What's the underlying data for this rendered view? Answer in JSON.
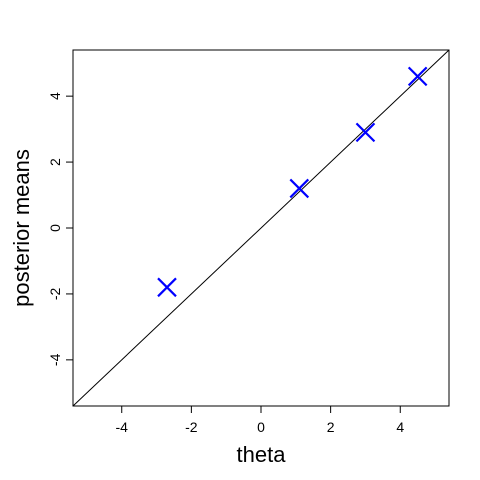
{
  "chart_data": {
    "type": "scatter",
    "title": "",
    "xlabel": "theta",
    "ylabel": "posterior means",
    "xlim": [
      -5.4,
      5.4
    ],
    "ylim": [
      -5.4,
      5.4
    ],
    "xticks": [
      -4,
      -2,
      0,
      2,
      4
    ],
    "yticks": [
      -4,
      -2,
      0,
      2,
      4
    ],
    "grid": false,
    "legend": "none",
    "reference_line": {
      "type": "identity",
      "slope": 1,
      "intercept": 0,
      "color": "#000000"
    },
    "series": [
      {
        "marker": "x",
        "color": "#0000ff",
        "points": [
          {
            "x": -2.7,
            "y": -1.8
          },
          {
            "x": 1.1,
            "y": 1.2
          },
          {
            "x": 3.0,
            "y": 2.9
          },
          {
            "x": 4.5,
            "y": 4.6
          }
        ]
      }
    ]
  }
}
